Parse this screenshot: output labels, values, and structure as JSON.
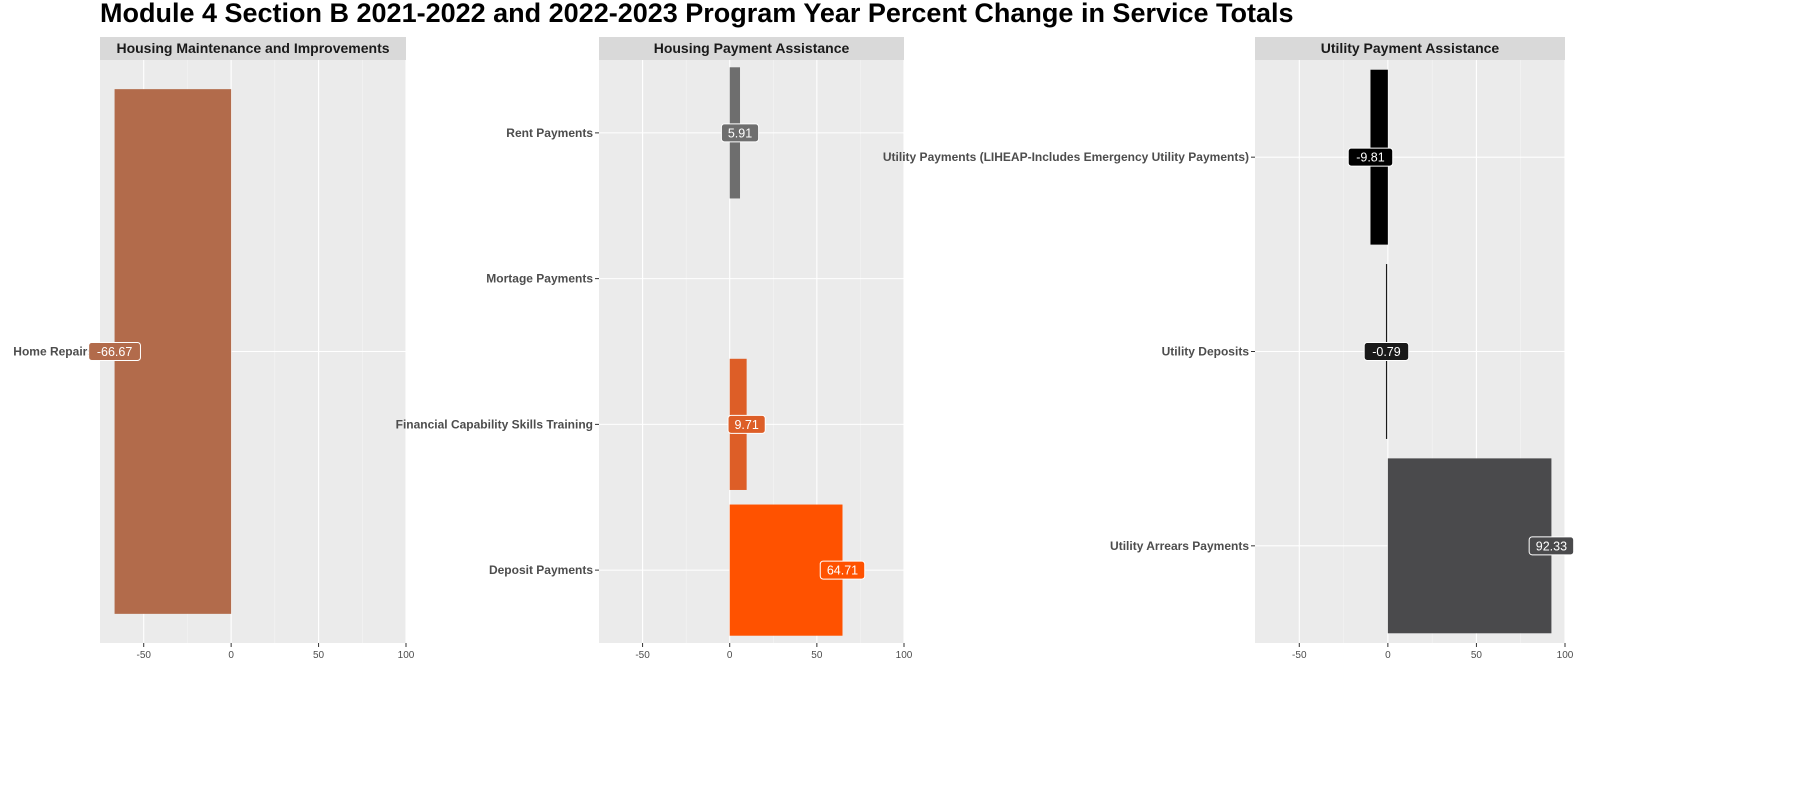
{
  "title": "Module 4 Section B 2021-2022 and 2022-2023 Program Year Percent Change in Service Totals",
  "chart_data": {
    "type": "bar",
    "orientation": "horizontal",
    "facets": [
      {
        "strip": "Housing Maintenance and Improvements",
        "xlim": [
          -75,
          100
        ],
        "ticks": [
          -50,
          0,
          50,
          100
        ],
        "tick_labels": [
          "-50",
          "0",
          "50",
          "100"
        ],
        "grid": true,
        "categories": [
          "Home Repairs"
        ],
        "values": [
          -66.67
        ],
        "labels": [
          "-66.67"
        ],
        "colors": [
          "#B26B4B"
        ]
      },
      {
        "strip": "Housing Payment Assistance",
        "xlim": [
          -75,
          100
        ],
        "ticks": [
          -50,
          0,
          50,
          100
        ],
        "tick_labels": [
          "-50",
          "0",
          "50",
          "100"
        ],
        "grid": true,
        "categories": [
          "Rent Payments",
          "Mortage Payments",
          "Financial Capability Skills Training",
          "Deposit Payments"
        ],
        "values": [
          5.91,
          0,
          9.71,
          64.71
        ],
        "labels": [
          "5.91",
          "",
          "9.71",
          "64.71"
        ],
        "colors": [
          "#6E6E6E",
          "#6E6E6E",
          "#DD5E27",
          "#FF5200"
        ]
      },
      {
        "strip": "Utility Payment Assistance",
        "xlim": [
          -75,
          100
        ],
        "ticks": [
          -50,
          0,
          50,
          100
        ],
        "tick_labels": [
          "-50",
          "0",
          "50",
          "100"
        ],
        "grid": true,
        "categories": [
          "Utility Payments (LIHEAP-Includes Emergency Utility Payments)",
          "Utility Deposits",
          "Utility Arrears Payments"
        ],
        "values": [
          -9.81,
          -0.79,
          92.33
        ],
        "labels": [
          "-9.81",
          "-0.79",
          "92.33"
        ],
        "colors": [
          "#000000",
          "#1A1A1A",
          "#4A4A4C"
        ]
      }
    ]
  }
}
